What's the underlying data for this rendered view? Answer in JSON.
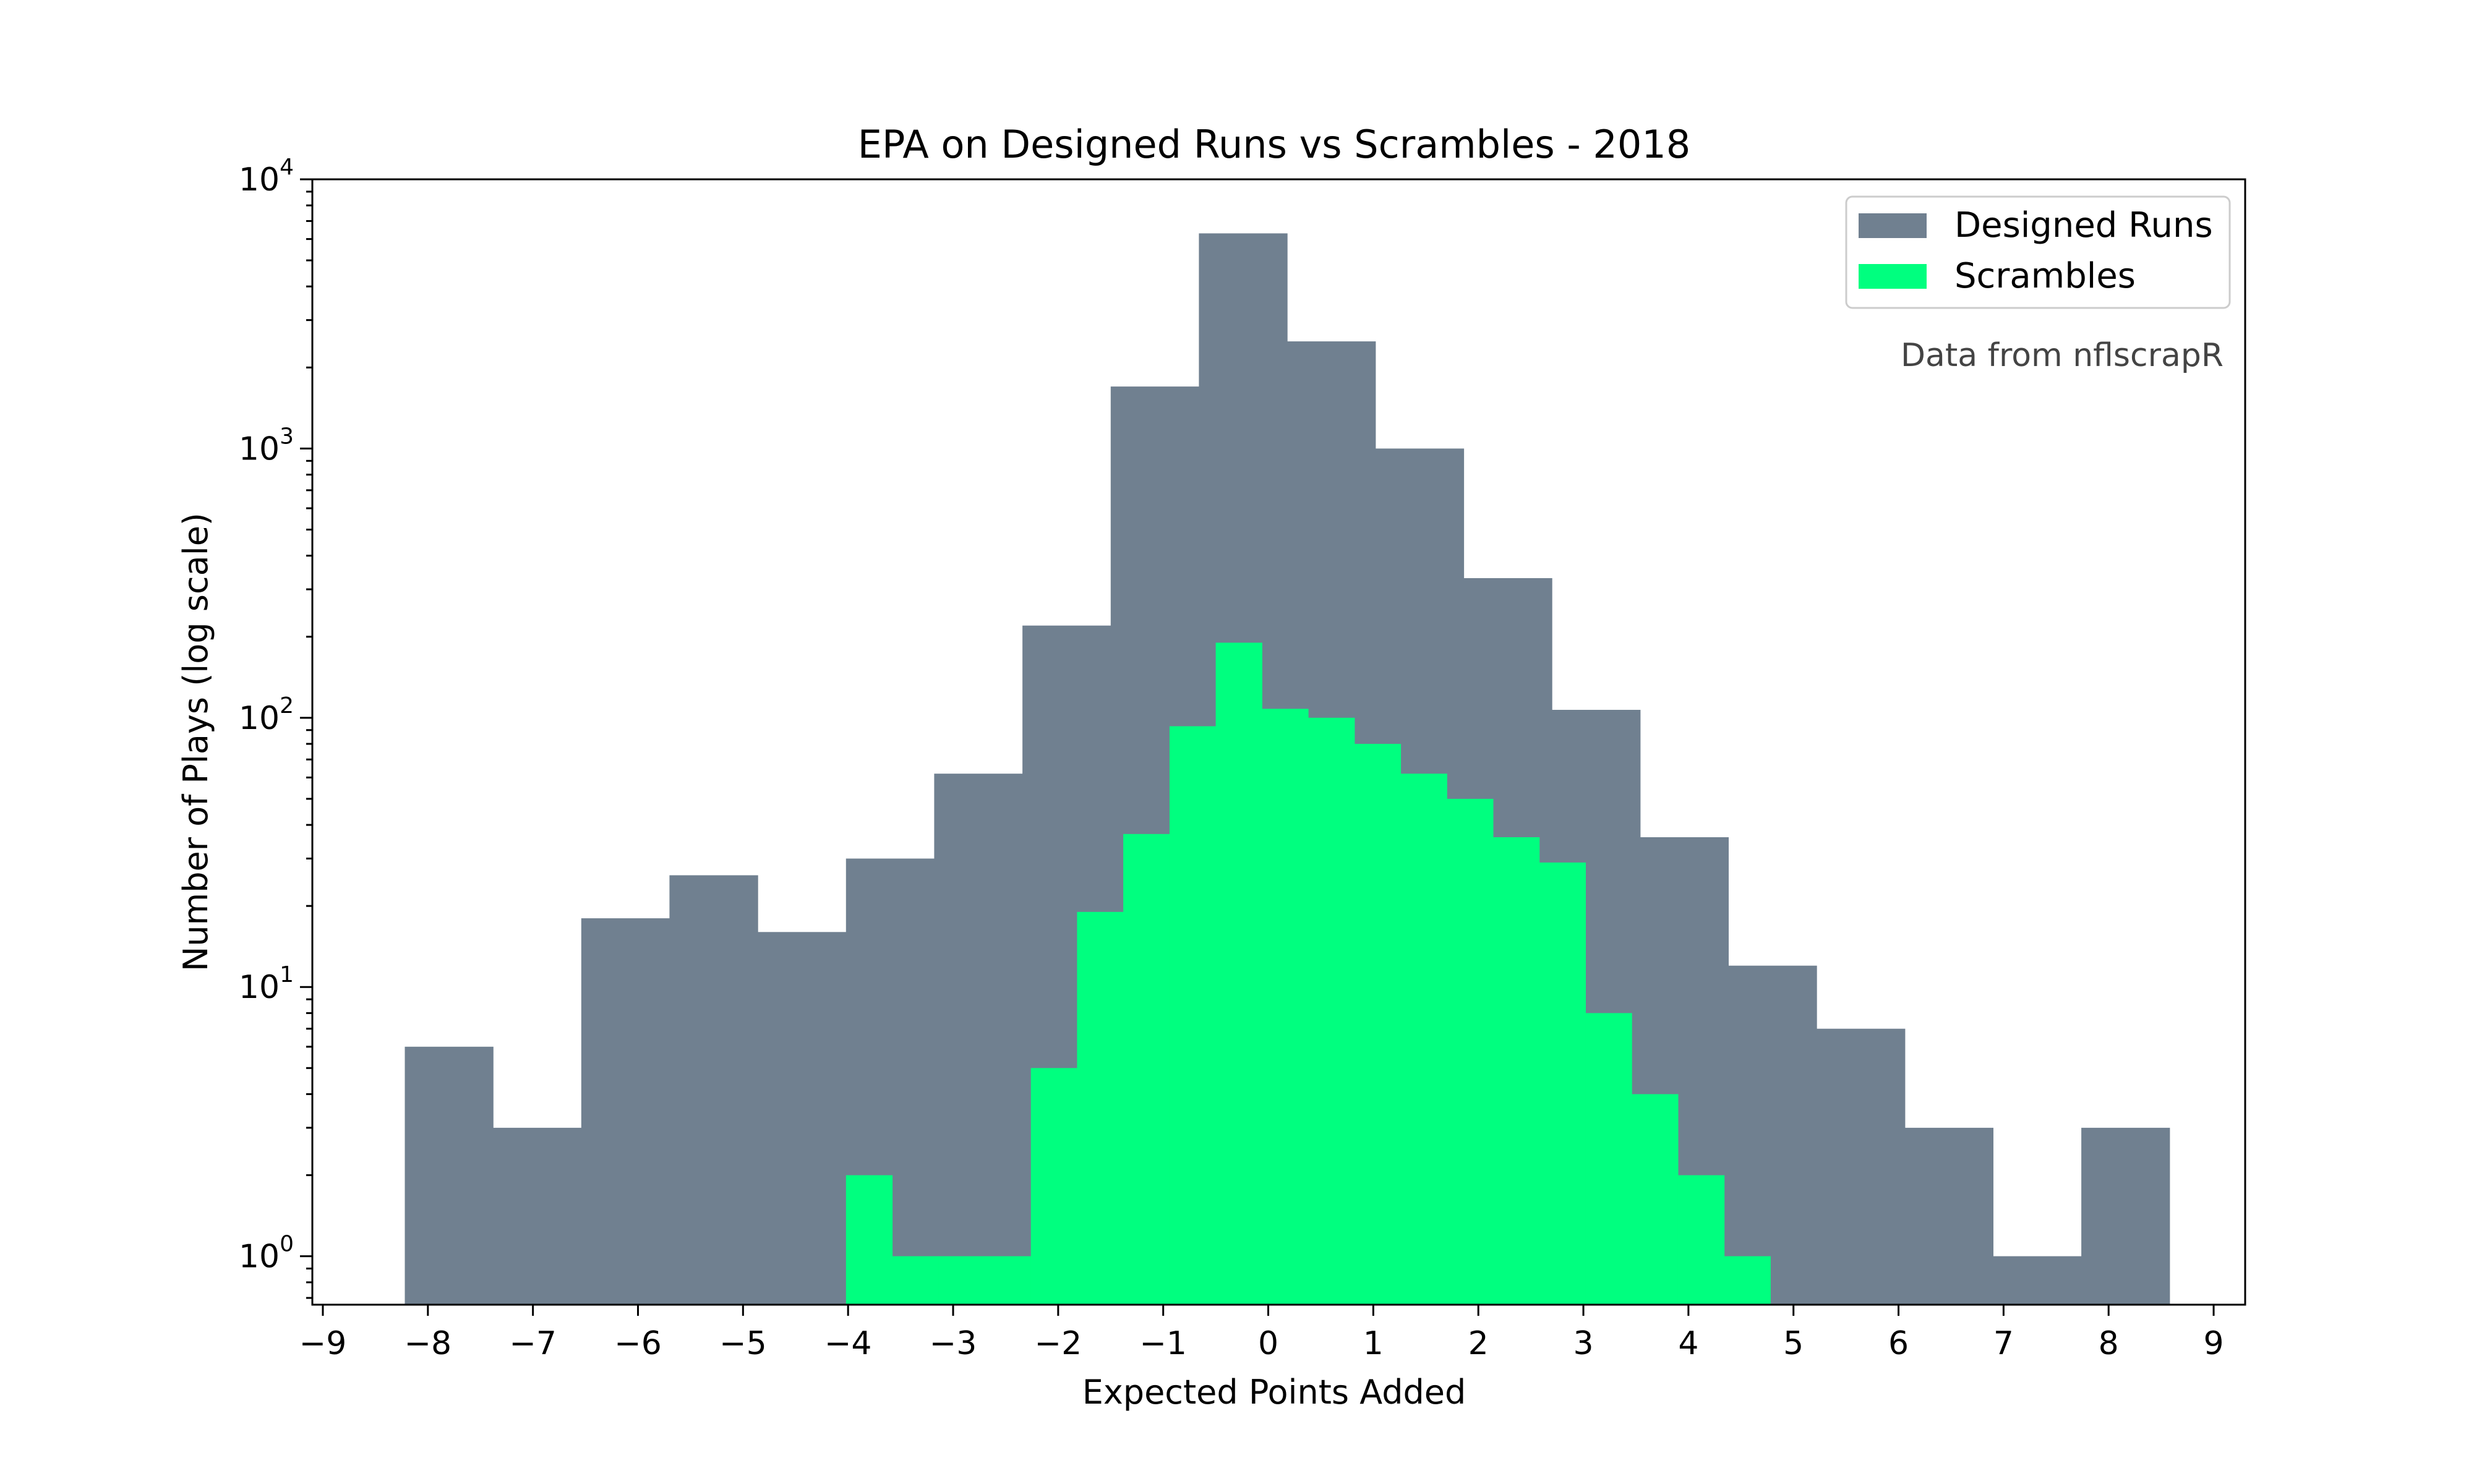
{
  "chart_data": {
    "type": "bar",
    "title": "EPA on Designed Runs vs Scrambles - 2018",
    "xlabel": "Expected Points Added",
    "ylabel": "Number of Plays (log scale)",
    "y_scale": "log",
    "xlim": [
      -9.1,
      9.3
    ],
    "ylim_log10": [
      -0.18,
      4.0
    ],
    "xticks": [
      -9,
      -8,
      -7,
      -6,
      -5,
      -4,
      -3,
      -2,
      -1,
      0,
      1,
      2,
      3,
      4,
      5,
      6,
      7,
      8,
      9
    ],
    "yticks": [
      {
        "base": "10",
        "exp": "0",
        "log10": 0
      },
      {
        "base": "10",
        "exp": "1",
        "log10": 1
      },
      {
        "base": "10",
        "exp": "2",
        "log10": 2
      },
      {
        "base": "10",
        "exp": "3",
        "log10": 3
      },
      {
        "base": "10",
        "exp": "4",
        "log10": 4
      }
    ],
    "legend_position": "top-right",
    "annotation": "Data from nflscrapR",
    "series": [
      {
        "name": "Designed Runs",
        "color": "#708090",
        "bins": [
          {
            "x0": -8.22,
            "x1": -7.38,
            "count": 6
          },
          {
            "x0": -7.38,
            "x1": -6.54,
            "count": 3
          },
          {
            "x0": -6.54,
            "x1": -5.7,
            "count": 18
          },
          {
            "x0": -5.7,
            "x1": -4.86,
            "count": 26
          },
          {
            "x0": -4.86,
            "x1": -4.02,
            "count": 16
          },
          {
            "x0": -4.02,
            "x1": -3.18,
            "count": 30
          },
          {
            "x0": -3.18,
            "x1": -2.34,
            "count": 62
          },
          {
            "x0": -2.34,
            "x1": -1.5,
            "count": 220
          },
          {
            "x0": -1.5,
            "x1": -0.66,
            "count": 1700
          },
          {
            "x0": -0.66,
            "x1": 0.18,
            "count": 6300
          },
          {
            "x0": 0.18,
            "x1": 1.02,
            "count": 2500
          },
          {
            "x0": 1.02,
            "x1": 1.86,
            "count": 1000
          },
          {
            "x0": 1.86,
            "x1": 2.7,
            "count": 330
          },
          {
            "x0": 2.7,
            "x1": 3.54,
            "count": 107
          },
          {
            "x0": 3.54,
            "x1": 4.38,
            "count": 36
          },
          {
            "x0": 4.38,
            "x1": 5.22,
            "count": 12
          },
          {
            "x0": 5.22,
            "x1": 6.06,
            "count": 7
          },
          {
            "x0": 6.06,
            "x1": 6.9,
            "count": 3
          },
          {
            "x0": 6.9,
            "x1": 7.74,
            "count": 1
          },
          {
            "x0": 7.74,
            "x1": 8.58,
            "count": 3
          }
        ]
      },
      {
        "name": "Scrambles",
        "color": "#00ff7f",
        "bins": [
          {
            "x0": -4.02,
            "x1": -3.58,
            "count": 2
          },
          {
            "x0": -3.58,
            "x1": -3.14,
            "count": 1
          },
          {
            "x0": -3.14,
            "x1": -2.7,
            "count": 1
          },
          {
            "x0": -2.7,
            "x1": -2.26,
            "count": 1
          },
          {
            "x0": -2.26,
            "x1": -1.82,
            "count": 5
          },
          {
            "x0": -1.82,
            "x1": -1.38,
            "count": 19
          },
          {
            "x0": -1.38,
            "x1": -0.94,
            "count": 37
          },
          {
            "x0": -0.94,
            "x1": -0.5,
            "count": 93
          },
          {
            "x0": -0.5,
            "x1": -0.06,
            "count": 190
          },
          {
            "x0": -0.06,
            "x1": 0.38,
            "count": 108
          },
          {
            "x0": 0.38,
            "x1": 0.82,
            "count": 100
          },
          {
            "x0": 0.82,
            "x1": 1.26,
            "count": 80
          },
          {
            "x0": 1.26,
            "x1": 1.7,
            "count": 62
          },
          {
            "x0": 1.7,
            "x1": 2.14,
            "count": 50
          },
          {
            "x0": 2.14,
            "x1": 2.58,
            "count": 36
          },
          {
            "x0": 2.58,
            "x1": 3.02,
            "count": 29
          },
          {
            "x0": 3.02,
            "x1": 3.46,
            "count": 8
          },
          {
            "x0": 3.46,
            "x1": 3.9,
            "count": 4
          },
          {
            "x0": 3.9,
            "x1": 4.34,
            "count": 2
          },
          {
            "x0": 4.34,
            "x1": 4.78,
            "count": 1
          }
        ]
      }
    ]
  }
}
